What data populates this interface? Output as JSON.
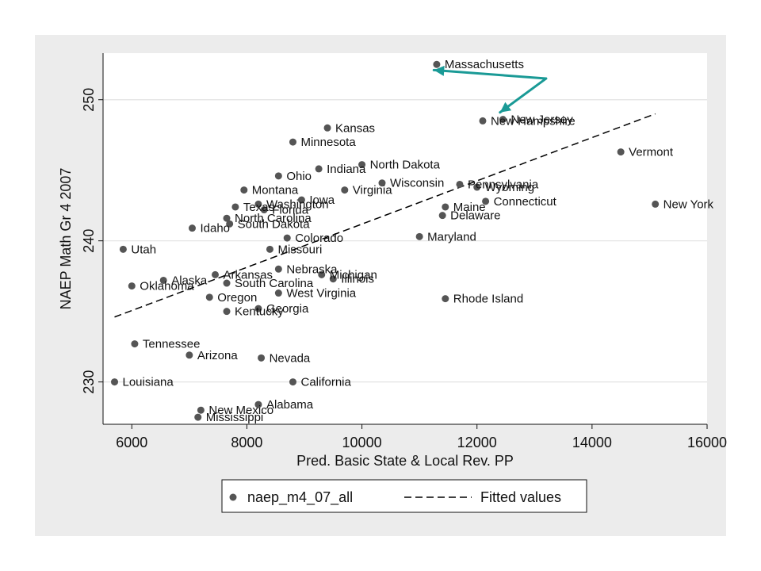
{
  "chart_data": {
    "type": "scatter",
    "xlabel": "Pred. Basic State & Local Rev. PP",
    "ylabel": "NAEP Math Gr 4 2007",
    "xlim": [
      5500,
      16000
    ],
    "ylim": [
      227,
      253.3
    ],
    "x_ticks": [
      6000,
      8000,
      10000,
      12000,
      14000,
      16000
    ],
    "y_ticks": [
      230,
      240,
      250
    ],
    "grid": "horizontal",
    "legend_position": "bottom",
    "colors": {
      "outer_background": "#ececec",
      "plot_background": "#ffffff",
      "marker": "#555555",
      "fit_line": "#000000",
      "arrow": "#1a9a96",
      "grid": "#e2e2e2"
    },
    "series": [
      {
        "name": "naep_m4_07_all",
        "points": [
          {
            "label": "Massachusetts",
            "x": 11300,
            "y": 252.5
          },
          {
            "label": "New Hampshire",
            "x": 12100,
            "y": 248.5
          },
          {
            "label": "New Jersey",
            "x": 12450,
            "y": 248.6
          },
          {
            "label": "Kansas",
            "x": 9400,
            "y": 248
          },
          {
            "label": "Minnesota",
            "x": 8800,
            "y": 247
          },
          {
            "label": "Vermont",
            "x": 14500,
            "y": 246.3
          },
          {
            "label": "North Dakota",
            "x": 10000,
            "y": 245.4
          },
          {
            "label": "Indiana",
            "x": 9250,
            "y": 245.1
          },
          {
            "label": "Ohio",
            "x": 8550,
            "y": 244.6
          },
          {
            "label": "Wisconsin",
            "x": 10350,
            "y": 244.1
          },
          {
            "label": "Pennsylvania",
            "x": 11700,
            "y": 244
          },
          {
            "label": "Wyoming",
            "x": 12000,
            "y": 243.8
          },
          {
            "label": "Montana",
            "x": 7950,
            "y": 243.6
          },
          {
            "label": "Virginia",
            "x": 9700,
            "y": 243.6
          },
          {
            "label": "Iowa",
            "x": 8950,
            "y": 242.9
          },
          {
            "label": "Connecticut",
            "x": 12150,
            "y": 242.8
          },
          {
            "label": "Washington",
            "x": 8200,
            "y": 242.6
          },
          {
            "label": "Texas",
            "x": 7800,
            "y": 242.4
          },
          {
            "label": "Florida",
            "x": 8300,
            "y": 242.2
          },
          {
            "label": "Maine",
            "x": 11450,
            "y": 242.4
          },
          {
            "label": "New York",
            "x": 15100,
            "y": 242.6
          },
          {
            "label": "North Carolina",
            "x": 7650,
            "y": 241.6
          },
          {
            "label": "Delaware",
            "x": 11400,
            "y": 241.8
          },
          {
            "label": "South Dakota",
            "x": 7700,
            "y": 241.2
          },
          {
            "label": "Idaho",
            "x": 7050,
            "y": 240.9
          },
          {
            "label": "Maryland",
            "x": 11000,
            "y": 240.3
          },
          {
            "label": "Colorado",
            "x": 8700,
            "y": 240.2
          },
          {
            "label": "Utah",
            "x": 5850,
            "y": 239.4
          },
          {
            "label": "Missouri",
            "x": 8400,
            "y": 239.4
          },
          {
            "label": "Nebraska",
            "x": 8550,
            "y": 238
          },
          {
            "label": "Michigan",
            "x": 9300,
            "y": 237.6
          },
          {
            "label": "Arkansas",
            "x": 7450,
            "y": 237.6
          },
          {
            "label": "Illinois",
            "x": 9500,
            "y": 237.3
          },
          {
            "label": "Alaska",
            "x": 6550,
            "y": 237.2
          },
          {
            "label": "South Carolina",
            "x": 7650,
            "y": 237
          },
          {
            "label": "Oklahoma",
            "x": 6000,
            "y": 236.8
          },
          {
            "label": "West Virginia",
            "x": 8550,
            "y": 236.3
          },
          {
            "label": "Oregon",
            "x": 7350,
            "y": 236
          },
          {
            "label": "Rhode Island",
            "x": 11450,
            "y": 235.9
          },
          {
            "label": "Georgia",
            "x": 8200,
            "y": 235.2
          },
          {
            "label": "Kentucky",
            "x": 7650,
            "y": 235
          },
          {
            "label": "Tennessee",
            "x": 6050,
            "y": 232.7
          },
          {
            "label": "Arizona",
            "x": 7000,
            "y": 231.9
          },
          {
            "label": "Nevada",
            "x": 8250,
            "y": 231.7
          },
          {
            "label": "Louisiana",
            "x": 5700,
            "y": 230
          },
          {
            "label": "California",
            "x": 8800,
            "y": 230
          },
          {
            "label": "Alabama",
            "x": 8200,
            "y": 228.4
          },
          {
            "label": "New Mexico",
            "x": 7200,
            "y": 228
          },
          {
            "label": "Mississippi",
            "x": 7150,
            "y": 227.5
          }
        ]
      },
      {
        "name": "Fitted values",
        "type": "line",
        "style": "dashed",
        "x": [
          5700,
          15100
        ],
        "y": [
          234.6,
          249
        ]
      }
    ],
    "annotations": [
      {
        "type": "arrow",
        "from": [
          13200,
          251.5
        ],
        "to": [
          11250,
          252.1
        ]
      },
      {
        "type": "arrow",
        "from": [
          13200,
          251.5
        ],
        "to": [
          12400,
          249.1
        ]
      }
    ]
  }
}
